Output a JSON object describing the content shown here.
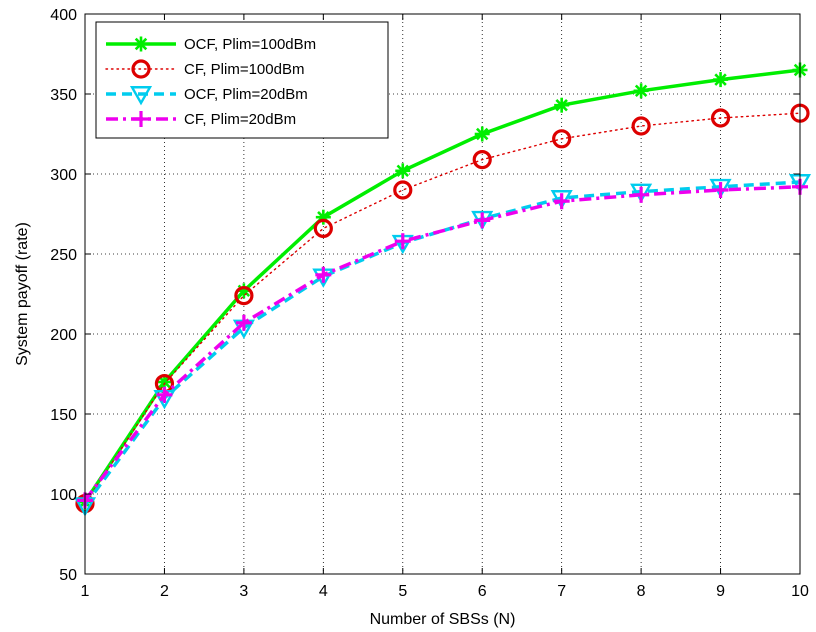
{
  "chart_data": {
    "type": "line",
    "title": "",
    "xlabel": "Number of SBSs (N)",
    "ylabel": "System payoff (rate)",
    "xlim": [
      1,
      10
    ],
    "ylim": [
      50,
      400
    ],
    "xticks": [
      1,
      2,
      3,
      4,
      5,
      6,
      7,
      8,
      9,
      10
    ],
    "yticks": [
      50,
      100,
      150,
      200,
      250,
      300,
      350,
      400
    ],
    "grid": true,
    "legend_position": "top-left",
    "x": [
      1,
      2,
      3,
      4,
      5,
      6,
      7,
      8,
      9,
      10
    ],
    "series": [
      {
        "name": "OCF, Plim=100dBm",
        "color": "#00ee00",
        "line_style": "solid",
        "marker": "asterisk",
        "values": [
          95,
          170,
          227,
          273,
          302,
          325,
          343,
          352,
          359,
          365
        ]
      },
      {
        "name": "CF, Plim=100dBm",
        "color": "#dd0000",
        "line_style": "dotted",
        "marker": "circle",
        "values": [
          94,
          169,
          224,
          266,
          290,
          309,
          322,
          330,
          335,
          338
        ]
      },
      {
        "name": "OCF, Plim=20dBm",
        "color": "#00ccee",
        "line_style": "dashed",
        "marker": "triangle-down",
        "values": [
          93,
          160,
          204,
          236,
          257,
          272,
          285,
          289,
          292,
          295
        ]
      },
      {
        "name": "CF, Plim=20dBm",
        "color": "#ee00ee",
        "line_style": "dashdot",
        "marker": "plus",
        "values": [
          96,
          162,
          207,
          237,
          258,
          271,
          283,
          287,
          290,
          292
        ]
      }
    ]
  }
}
